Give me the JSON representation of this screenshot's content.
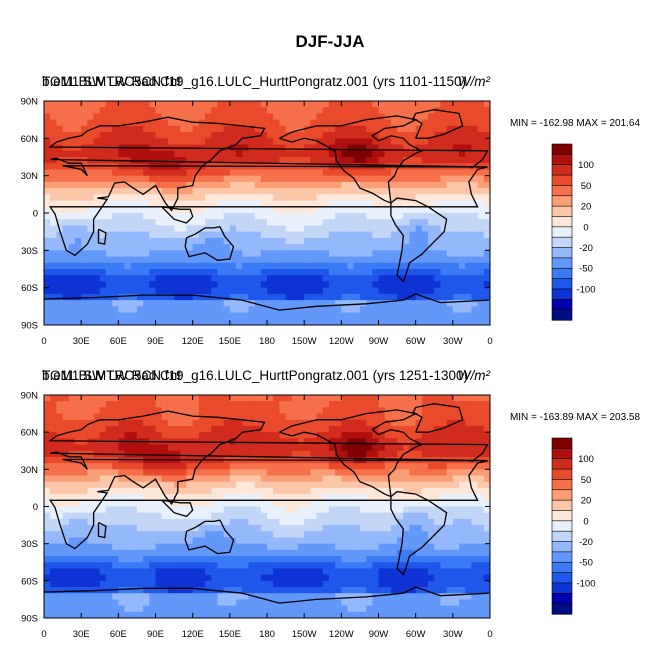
{
  "figure_title": "DJF-JJA",
  "colorbar": {
    "colors": [
      "#000d80",
      "#0000b2",
      "#0f33d4",
      "#1f57eb",
      "#3b7af5",
      "#6398fa",
      "#94b8fa",
      "#c2d6f7",
      "#e8f0fc",
      "#fde7d9",
      "#fcc6a8",
      "#fa9e78",
      "#f5704b",
      "#e84a2b",
      "#d12a1e",
      "#b00f0f",
      "#800000"
    ],
    "labels": [
      "100",
      "50",
      "20",
      "0",
      "-20",
      "-50",
      "-100"
    ],
    "label_slots": [
      2,
      4,
      6,
      8,
      10,
      12,
      14
    ]
  },
  "chart_data": [
    {
      "type": "heatmap",
      "panel": "top",
      "title_overlapping_a": "TOM1 SW LW Rad Cnt",
      "title_overlapping_b": "b.e11.BLMTRC5CN.f19_g16.LULC_HurttPongratz.001 (yrs 1101-1150)",
      "units": "W/m²",
      "stats": "MIN = -162.98 MAX = 201.64",
      "min": -162.98,
      "max": 201.64,
      "lon_ticks": [
        "0",
        "30E",
        "60E",
        "90E",
        "120E",
        "150E",
        "180",
        "150W",
        "120W",
        "90W",
        "60W",
        "30W",
        "0"
      ],
      "lat_ticks": [
        "90N",
        "60N",
        "30N",
        "0",
        "30S",
        "60S",
        "90S"
      ],
      "xlim": [
        0,
        360
      ],
      "ylim": [
        -90,
        90
      ]
    },
    {
      "type": "heatmap",
      "panel": "bottom",
      "title_overlapping_a": "TOM1 SW LW Rad Cnt",
      "title_overlapping_b": "b.e11.BLMTRC5CN.f19_g16.LULC_HurttPongratz.001 (yrs 1251-1300)",
      "units": "W/m²",
      "stats": "MIN = -163.89 MAX = 203.58",
      "min": -163.89,
      "max": 203.58,
      "lon_ticks": [
        "0",
        "30E",
        "60E",
        "90E",
        "120E",
        "150E",
        "180",
        "150W",
        "120W",
        "90W",
        "60W",
        "30W",
        "0"
      ],
      "lat_ticks": [
        "90N",
        "60N",
        "30N",
        "0",
        "30S",
        "60S",
        "90S"
      ],
      "xlim": [
        0,
        360
      ],
      "ylim": [
        -90,
        90
      ]
    }
  ]
}
